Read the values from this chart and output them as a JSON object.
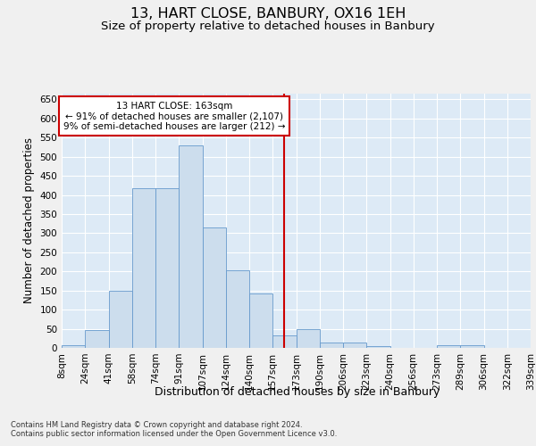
{
  "title_line1": "13, HART CLOSE, BANBURY, OX16 1EH",
  "title_line2": "Size of property relative to detached houses in Banbury",
  "xlabel": "Distribution of detached houses by size in Banbury",
  "ylabel": "Number of detached properties",
  "bins_labels": [
    "8sqm",
    "24sqm",
    "41sqm",
    "58sqm",
    "74sqm",
    "91sqm",
    "107sqm",
    "124sqm",
    "140sqm",
    "157sqm",
    "173sqm",
    "190sqm",
    "206sqm",
    "223sqm",
    "240sqm",
    "256sqm",
    "273sqm",
    "289sqm",
    "306sqm",
    "322sqm",
    "339sqm"
  ],
  "bar_heights": [
    8,
    46,
    150,
    418,
    417,
    530,
    315,
    204,
    142,
    33,
    48,
    13,
    13,
    5,
    0,
    0,
    7,
    8,
    0,
    0
  ],
  "bar_color": "#ccdded",
  "bar_edgecolor": "#6699cc",
  "vline_x": 9.5,
  "vline_color": "#cc0000",
  "annotation_text": "13 HART CLOSE: 163sqm\n← 91% of detached houses are smaller (2,107)\n9% of semi-detached houses are larger (212) →",
  "annotation_box_facecolor": "#ffffff",
  "annotation_box_edgecolor": "#cc0000",
  "ylim": [
    0,
    665
  ],
  "yticks": [
    0,
    50,
    100,
    150,
    200,
    250,
    300,
    350,
    400,
    450,
    500,
    550,
    600,
    650
  ],
  "background_color": "#ddeaf6",
  "grid_color": "#ffffff",
  "footer_line1": "Contains HM Land Registry data © Crown copyright and database right 2024.",
  "footer_line2": "Contains public sector information licensed under the Open Government Licence v3.0.",
  "title_fontsize": 11.5,
  "subtitle_fontsize": 9.5,
  "tick_fontsize": 7.5,
  "ylabel_fontsize": 8.5,
  "xlabel_fontsize": 9,
  "footer_fontsize": 6,
  "annotation_fontsize": 7.5
}
